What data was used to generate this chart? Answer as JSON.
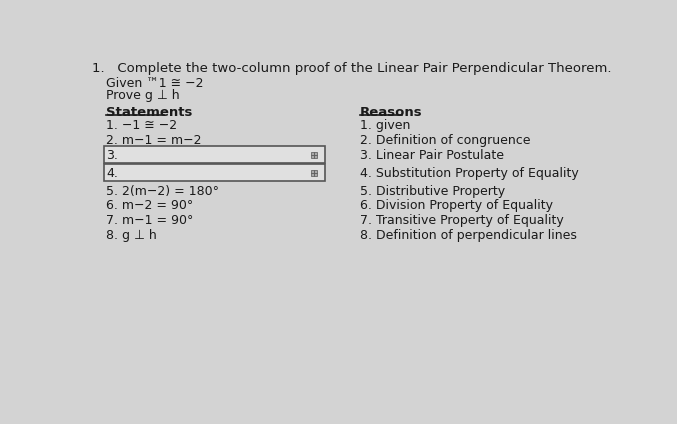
{
  "title": "1.   Complete the two-column proof of the Linear Pair Perpendicular Theorem.",
  "given": "Given ™1 ≅ −2",
  "prove": "Prove g ⊥ h",
  "statements_header": "Statements",
  "reasons_header": "Reasons",
  "statements": [
    "1. −1 ≅ −2",
    "2. m−1 = m−2",
    "3.",
    "4.",
    "5. 2(m−2) = 180°",
    "6. m−2 = 90°",
    "7. m−1 = 90°",
    "8. g ⊥ h"
  ],
  "reasons": [
    "1. given",
    "2. Definition of congruence",
    "3. Linear Pair Postulate",
    "4. Substitution Property of Equality",
    "5. Distributive Property",
    "6. Division Property of Equality",
    "7. Transitive Property of Equality",
    "8. Definition of perpendicular lines"
  ],
  "bg_color": "#d3d3d3",
  "text_color": "#1a1a1a",
  "input_box_color": "#e0e0e0",
  "input_box_border": "#555555"
}
